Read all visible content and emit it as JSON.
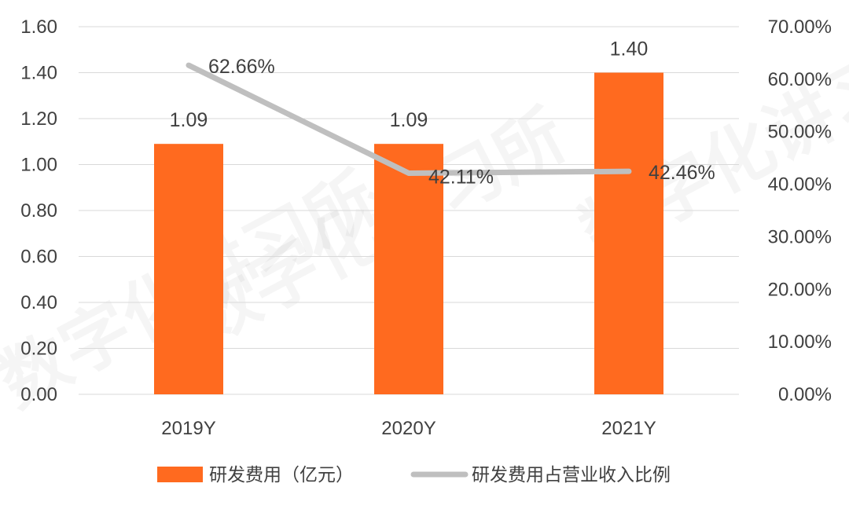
{
  "watermark": "数字化讲习所",
  "chart_data": {
    "type": "bar",
    "categories": [
      "2019Y",
      "2020Y",
      "2021Y"
    ],
    "ylim": [
      0,
      1.6
    ],
    "y2lim": [
      0,
      0.7
    ],
    "y_ticks": [
      "0.00",
      "0.20",
      "0.40",
      "0.60",
      "0.80",
      "1.00",
      "1.20",
      "1.40",
      "1.60"
    ],
    "y2_ticks": [
      "0.00%",
      "10.00%",
      "20.00%",
      "30.00%",
      "40.00%",
      "50.00%",
      "60.00%",
      "70.00%"
    ],
    "grid": true,
    "legend_position": "bottom",
    "series": [
      {
        "name": "研发费用（亿元）",
        "type": "bar",
        "axis": "left",
        "color": "#ff6a1f",
        "values": [
          1.09,
          1.09,
          1.4
        ],
        "labels": [
          "1.09",
          "1.09",
          "1.40"
        ]
      },
      {
        "name": "研发费用占营业收入比例",
        "type": "line",
        "axis": "right",
        "color": "#bfbfbf",
        "values": [
          0.6266,
          0.4211,
          0.4246
        ],
        "labels": [
          "62.66%",
          "42.11%",
          "42.46%"
        ]
      }
    ]
  }
}
